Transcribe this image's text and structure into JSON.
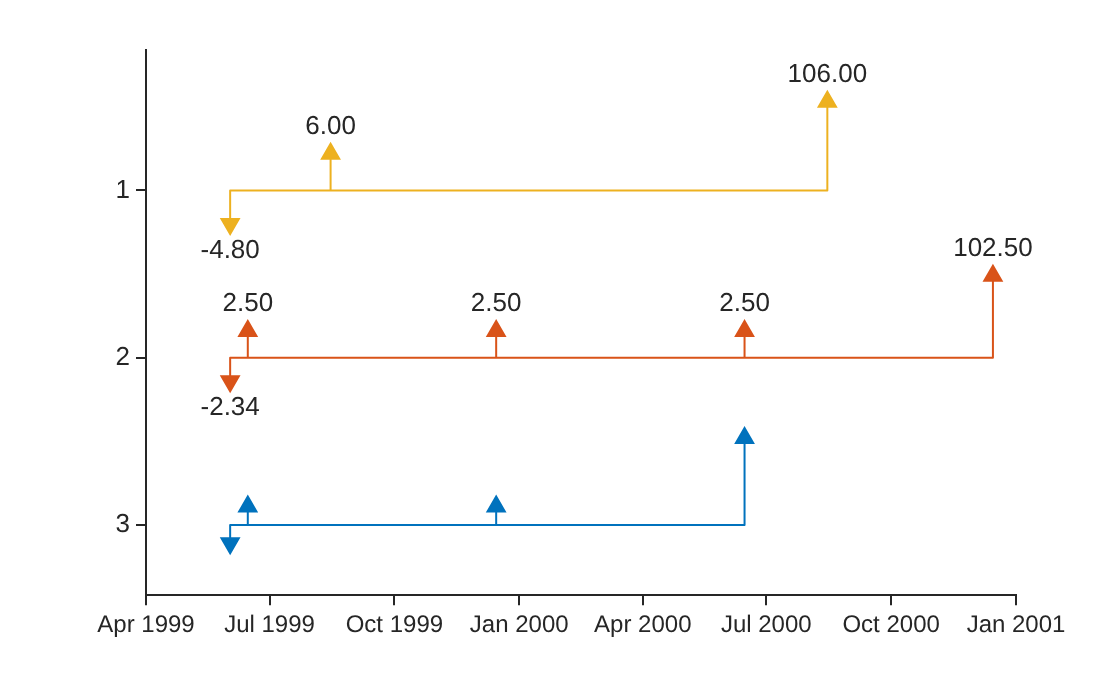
{
  "chart_data": {
    "type": "scatter",
    "xlim": [
      "1999-04-01",
      "2001-01-01"
    ],
    "xticks": [
      {
        "value": "1999-04-01",
        "label": "Apr 1999"
      },
      {
        "value": "1999-07-01",
        "label": "Jul 1999"
      },
      {
        "value": "1999-10-01",
        "label": "Oct 1999"
      },
      {
        "value": "2000-01-01",
        "label": "Jan 2000"
      },
      {
        "value": "2000-04-01",
        "label": "Apr 2000"
      },
      {
        "value": "2000-07-01",
        "label": "Jul 2000"
      },
      {
        "value": "2000-10-01",
        "label": "Oct 2000"
      },
      {
        "value": "2001-01-01",
        "label": "Jan 2001"
      }
    ],
    "ylim": [
      3.42,
      0.16
    ],
    "yticks": [
      1,
      2,
      3
    ],
    "grid": false,
    "legend": false,
    "series": [
      {
        "type": "line",
        "color": "#edb120",
        "x": [
          "1999-06-02",
          "1999-06-02",
          "1999-08-15",
          "1999-08-15",
          "1999-08-15",
          "2000-08-15",
          "2000-08-15"
        ],
        "values": [
          1.2,
          1,
          1,
          0.78,
          1,
          1,
          0.47
        ]
      },
      {
        "color": "#edb120",
        "marker": "triangle",
        "x": [
          "1999-06-02",
          "1999-08-15",
          "2000-08-15"
        ],
        "values": [
          1.2,
          0.78,
          0.47
        ]
      },
      {
        "type": "line",
        "color": "#d95319",
        "x": [
          "1999-06-02",
          "1999-06-02",
          "1999-06-15",
          "1999-06-15",
          "1999-06-15",
          "1999-12-15",
          "1999-12-15",
          "1999-12-15",
          "2000-06-15",
          "2000-06-15",
          "2000-06-15",
          "2000-12-15",
          "2000-12-15"
        ],
        "values": [
          2.14,
          2,
          2,
          1.84,
          2,
          2,
          1.84,
          2,
          2,
          1.84,
          2,
          2,
          1.51
        ]
      },
      {
        "color": "#d95319",
        "marker": "triangle",
        "x": [
          "1999-06-02",
          "1999-06-15",
          "1999-12-15",
          "2000-06-15",
          "2000-12-15"
        ],
        "values": [
          2.14,
          1.84,
          1.84,
          1.84,
          1.51
        ]
      },
      {
        "type": "line",
        "color": "#0072bd",
        "x": [
          "1999-06-02",
          "1999-06-02",
          "1999-06-15",
          "1999-06-15",
          "1999-06-15",
          "1999-12-15",
          "1999-12-15",
          "1999-12-15",
          "2000-06-15",
          "2000-06-15"
        ],
        "values": [
          3.11,
          3,
          3,
          2.89,
          3,
          3,
          2.89,
          3,
          3,
          2.48
        ]
      },
      {
        "color": "#0072bd",
        "marker": "triangle",
        "x": [
          "1999-06-02",
          "1999-06-15",
          "1999-12-15",
          "2000-06-15"
        ],
        "values": [
          3.11,
          2.89,
          2.89,
          2.48
        ]
      }
    ],
    "annotations": [
      {
        "text": "-4.80",
        "x": "1999-06-02",
        "y": 1.2
      },
      {
        "text": "6.00",
        "x": "1999-08-15",
        "y": 0.78
      },
      {
        "text": "106.00",
        "x": "2000-08-15",
        "y": 0.47
      },
      {
        "text": "-2.34",
        "x": "1999-06-02",
        "y": 2.14
      },
      {
        "text": "2.50",
        "x": "1999-06-15",
        "y": 1.84
      },
      {
        "text": "2.50",
        "x": "1999-12-15",
        "y": 1.84
      },
      {
        "text": "2.50",
        "x": "2000-06-15",
        "y": 1.84
      },
      {
        "text": "102.50",
        "x": "2000-12-15",
        "y": 1.51
      }
    ]
  }
}
